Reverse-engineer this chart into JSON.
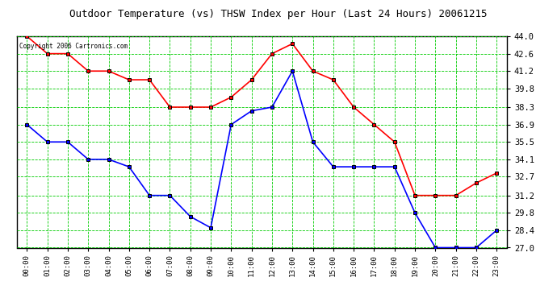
{
  "title": "Outdoor Temperature (vs) THSW Index per Hour (Last 24 Hours) 20061215",
  "copyright": "Copyright 2006 Cartronics.com",
  "hours": [
    0,
    1,
    2,
    3,
    4,
    5,
    6,
    7,
    8,
    9,
    10,
    11,
    12,
    13,
    14,
    15,
    16,
    17,
    18,
    19,
    20,
    21,
    22,
    23
  ],
  "red_data": [
    44.0,
    42.6,
    42.6,
    41.2,
    41.2,
    40.5,
    40.5,
    38.3,
    38.3,
    38.3,
    39.1,
    40.5,
    42.6,
    43.4,
    41.2,
    40.5,
    38.3,
    36.9,
    35.5,
    31.2,
    31.2,
    31.2,
    32.2,
    33.0
  ],
  "blue_data": [
    36.9,
    35.5,
    35.5,
    34.1,
    34.1,
    33.5,
    31.2,
    31.2,
    29.5,
    28.6,
    36.9,
    38.0,
    38.3,
    41.2,
    35.5,
    33.5,
    33.5,
    33.5,
    33.5,
    29.8,
    27.0,
    27.0,
    27.0,
    28.4
  ],
  "ylim": [
    27.0,
    44.0
  ],
  "yticks": [
    27.0,
    28.4,
    29.8,
    31.2,
    32.7,
    34.1,
    35.5,
    36.9,
    38.3,
    39.8,
    41.2,
    42.6,
    44.0
  ],
  "red_color": "#ff0000",
  "blue_color": "#0000ff",
  "marker_color": "#000000",
  "bg_color": "#ffffff",
  "grid_color": "#00cc00",
  "title_color": "#000000",
  "copyright_color": "#000000",
  "figwidth": 6.9,
  "figheight": 3.75,
  "dpi": 100
}
